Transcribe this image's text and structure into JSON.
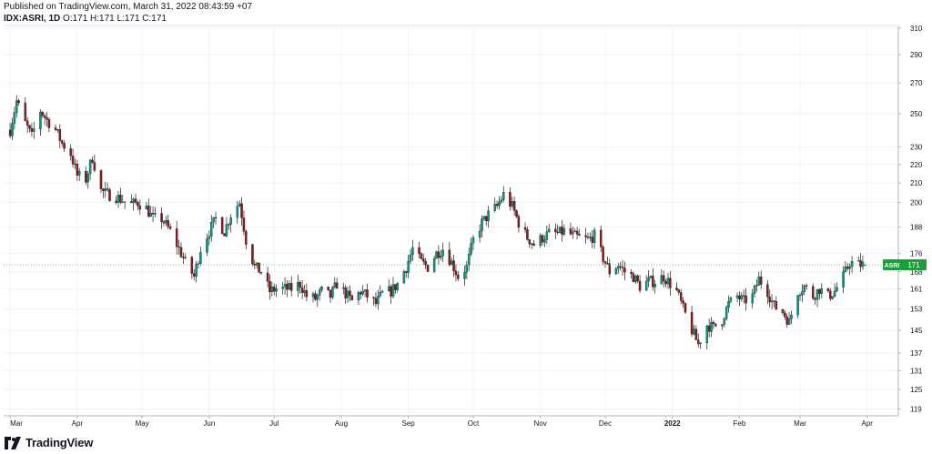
{
  "header": {
    "published": "Published on TradingView.com, March 31, 2022 08:43:59 +07",
    "symbol": "IDX:ASRI, 1D",
    "ohlc": "O:171 H:171 L:171 C:171"
  },
  "footer": {
    "brand": "TradingView"
  },
  "colors": {
    "up": "#26a69a",
    "down": "#ef5350",
    "candle_up": "#089981",
    "candle_down": "#8b1a1a",
    "price_line": "#4caf50",
    "label_bg": "#1e9e3a"
  },
  "chart_data": {
    "type": "candlestick",
    "symbol": "ASRI",
    "last_price": 171,
    "price_label": "ASRI",
    "y_ticks": [
      310,
      290,
      270,
      250,
      230,
      220,
      210,
      200,
      188,
      176,
      168,
      161,
      153,
      145,
      137,
      131,
      125,
      119
    ],
    "ylim": [
      117,
      312
    ],
    "x_ticks": [
      {
        "label": "Mar",
        "bold": false
      },
      {
        "label": "Apr",
        "bold": false
      },
      {
        "label": "May",
        "bold": false
      },
      {
        "label": "Jun",
        "bold": false
      },
      {
        "label": "Jul",
        "bold": false
      },
      {
        "label": "Aug",
        "bold": false
      },
      {
        "label": "Sep",
        "bold": false
      },
      {
        "label": "Oct",
        "bold": false
      },
      {
        "label": "Nov",
        "bold": false
      },
      {
        "label": "Dec",
        "bold": false
      },
      {
        "label": "2022",
        "bold": true
      },
      {
        "label": "Feb",
        "bold": false
      },
      {
        "label": "Mar",
        "bold": false
      },
      {
        "label": "Apr",
        "bold": false
      }
    ],
    "close_path": [
      [
        "2021-03-01",
        240
      ],
      [
        "2021-03-04",
        258
      ],
      [
        "2021-03-08",
        244
      ],
      [
        "2021-03-11",
        236
      ],
      [
        "2021-03-15",
        252
      ],
      [
        "2021-03-18",
        246
      ],
      [
        "2021-03-22",
        240
      ],
      [
        "2021-03-25",
        232
      ],
      [
        "2021-03-29",
        226
      ],
      [
        "2021-04-01",
        214
      ],
      [
        "2021-04-05",
        212
      ],
      [
        "2021-04-08",
        224
      ],
      [
        "2021-04-12",
        206
      ],
      [
        "2021-04-15",
        204
      ],
      [
        "2021-04-19",
        203
      ],
      [
        "2021-04-22",
        201
      ],
      [
        "2021-04-26",
        199
      ],
      [
        "2021-04-29",
        200
      ],
      [
        "2021-05-03",
        197
      ],
      [
        "2021-05-06",
        192
      ],
      [
        "2021-05-10",
        192
      ],
      [
        "2021-05-14",
        186
      ],
      [
        "2021-05-18",
        178
      ],
      [
        "2021-05-21",
        172
      ],
      [
        "2021-05-25",
        166
      ],
      [
        "2021-05-28",
        178
      ],
      [
        "2021-06-01",
        186
      ],
      [
        "2021-06-04",
        192
      ],
      [
        "2021-06-08",
        186
      ],
      [
        "2021-06-11",
        194
      ],
      [
        "2021-06-15",
        200
      ],
      [
        "2021-06-18",
        182
      ],
      [
        "2021-06-22",
        170
      ],
      [
        "2021-06-25",
        168
      ],
      [
        "2021-06-29",
        160
      ],
      [
        "2021-07-02",
        161
      ],
      [
        "2021-07-06",
        161
      ],
      [
        "2021-07-09",
        161
      ],
      [
        "2021-07-13",
        163
      ],
      [
        "2021-07-16",
        158
      ],
      [
        "2021-07-20",
        157
      ],
      [
        "2021-07-23",
        160
      ],
      [
        "2021-07-27",
        158
      ],
      [
        "2021-07-30",
        163
      ],
      [
        "2021-08-03",
        159
      ],
      [
        "2021-08-06",
        156
      ],
      [
        "2021-08-10",
        160
      ],
      [
        "2021-08-13",
        158
      ],
      [
        "2021-08-17",
        155
      ],
      [
        "2021-08-20",
        159
      ],
      [
        "2021-08-24",
        160
      ],
      [
        "2021-08-27",
        163
      ],
      [
        "2021-08-31",
        170
      ],
      [
        "2021-09-03",
        178
      ],
      [
        "2021-09-07",
        172
      ],
      [
        "2021-09-10",
        170
      ],
      [
        "2021-09-14",
        176
      ],
      [
        "2021-09-17",
        178
      ],
      [
        "2021-09-21",
        172
      ],
      [
        "2021-09-24",
        166
      ],
      [
        "2021-09-28",
        170
      ],
      [
        "2021-10-01",
        182
      ],
      [
        "2021-10-05",
        190
      ],
      [
        "2021-10-08",
        194
      ],
      [
        "2021-10-12",
        198
      ],
      [
        "2021-10-15",
        204
      ],
      [
        "2021-10-19",
        198
      ],
      [
        "2021-10-22",
        190
      ],
      [
        "2021-10-26",
        183
      ],
      [
        "2021-10-29",
        180
      ],
      [
        "2021-11-02",
        183
      ],
      [
        "2021-11-05",
        185
      ],
      [
        "2021-11-09",
        185
      ],
      [
        "2021-11-12",
        186
      ],
      [
        "2021-11-16",
        184
      ],
      [
        "2021-11-19",
        183
      ],
      [
        "2021-11-23",
        182
      ],
      [
        "2021-11-26",
        184
      ],
      [
        "2021-11-30",
        174
      ],
      [
        "2021-12-03",
        168
      ],
      [
        "2021-12-07",
        171
      ],
      [
        "2021-12-10",
        168
      ],
      [
        "2021-12-14",
        166
      ],
      [
        "2021-12-17",
        162
      ],
      [
        "2021-12-21",
        164
      ],
      [
        "2021-12-24",
        164
      ],
      [
        "2021-12-28",
        166
      ],
      [
        "2022-01-03",
        160
      ],
      [
        "2022-01-06",
        153
      ],
      [
        "2022-01-10",
        145
      ],
      [
        "2022-01-13",
        140
      ],
      [
        "2022-01-17",
        147
      ],
      [
        "2022-01-20",
        146
      ],
      [
        "2022-01-24",
        149
      ],
      [
        "2022-01-27",
        155
      ],
      [
        "2022-01-31",
        158
      ],
      [
        "2022-02-03",
        156
      ],
      [
        "2022-02-07",
        158
      ],
      [
        "2022-02-10",
        165
      ],
      [
        "2022-02-14",
        160
      ],
      [
        "2022-02-17",
        154
      ],
      [
        "2022-02-21",
        152
      ],
      [
        "2022-02-24",
        148
      ],
      [
        "2022-02-28",
        160
      ],
      [
        "2022-03-03",
        162
      ],
      [
        "2022-03-07",
        158
      ],
      [
        "2022-03-10",
        161
      ],
      [
        "2022-03-14",
        158
      ],
      [
        "2022-03-17",
        160
      ],
      [
        "2022-03-21",
        166
      ],
      [
        "2022-03-24",
        172
      ],
      [
        "2022-03-28",
        171
      ],
      [
        "2022-03-31",
        171
      ]
    ]
  }
}
